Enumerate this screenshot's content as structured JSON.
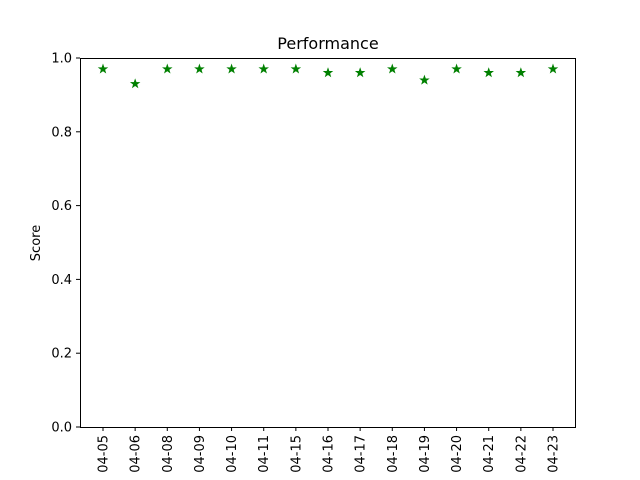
{
  "chart_data": {
    "type": "scatter",
    "title": "Performance",
    "xlabel": "",
    "ylabel": "Score",
    "ylim": [
      0,
      1.0
    ],
    "yticks": [
      "0.0",
      "0.2",
      "0.4",
      "0.6",
      "0.8",
      "1.0"
    ],
    "categories": [
      "04-05",
      "04-06",
      "04-08",
      "04-09",
      "04-10",
      "04-11",
      "04-15",
      "04-16",
      "04-17",
      "04-18",
      "04-19",
      "04-20",
      "04-21",
      "04-22",
      "04-23"
    ],
    "values": [
      0.97,
      0.93,
      0.97,
      0.97,
      0.97,
      0.97,
      0.97,
      0.96,
      0.96,
      0.97,
      0.94,
      0.97,
      0.96,
      0.96,
      0.97
    ],
    "marker": "star",
    "marker_color": "#008000",
    "grid": false,
    "legend": "none"
  }
}
